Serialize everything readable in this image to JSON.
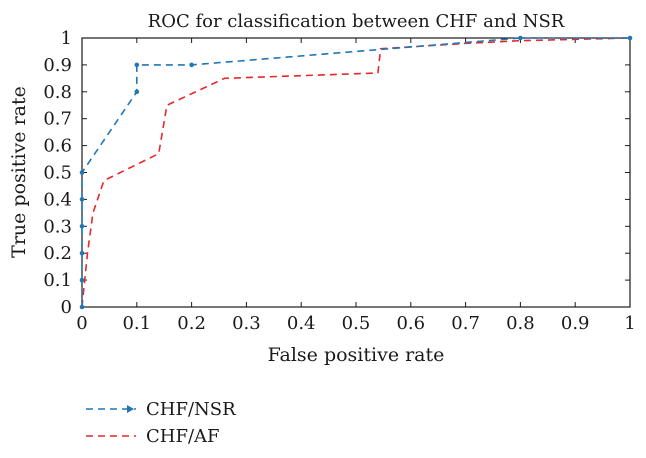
{
  "chart_data": {
    "type": "line",
    "title": "ROC for classification between CHF and NSR",
    "xlabel": "False positive rate",
    "ylabel": "True positive rate",
    "xlim": [
      0,
      1
    ],
    "ylim": [
      0,
      1
    ],
    "xticks": [
      "0",
      "0.1",
      "0.2",
      "0.3",
      "0.4",
      "0.5",
      "0.6",
      "0.7",
      "0.8",
      "0.9",
      "1"
    ],
    "yticks": [
      "0",
      "0.1",
      "0.2",
      "0.3",
      "0.4",
      "0.5",
      "0.6",
      "0.7",
      "0.8",
      "0.9",
      "1"
    ],
    "grid": false,
    "legend_position": "bottom-left, below plot",
    "series": [
      {
        "name": "CHF/NSR",
        "color": "#1f77b4",
        "line_style": "dashed",
        "marker": "dot",
        "x": [
          0,
          0,
          0,
          0,
          0,
          0,
          0.1,
          0.1,
          0.2,
          0.8,
          1
        ],
        "y": [
          0,
          0.1,
          0.2,
          0.3,
          0.4,
          0.5,
          0.8,
          0.9,
          0.9,
          1.0,
          1.0
        ]
      },
      {
        "name": "CHF/AF",
        "color": "#e8262b",
        "line_style": "dashed",
        "marker": "none",
        "x": [
          0,
          0.005,
          0.01,
          0.02,
          0.04,
          0.1,
          0.14,
          0.155,
          0.26,
          0.54,
          0.545,
          0.7,
          0.8,
          1.0
        ],
        "y": [
          0,
          0.1,
          0.2,
          0.35,
          0.47,
          0.53,
          0.57,
          0.75,
          0.85,
          0.87,
          0.96,
          0.98,
          0.99,
          1.0
        ]
      }
    ]
  }
}
